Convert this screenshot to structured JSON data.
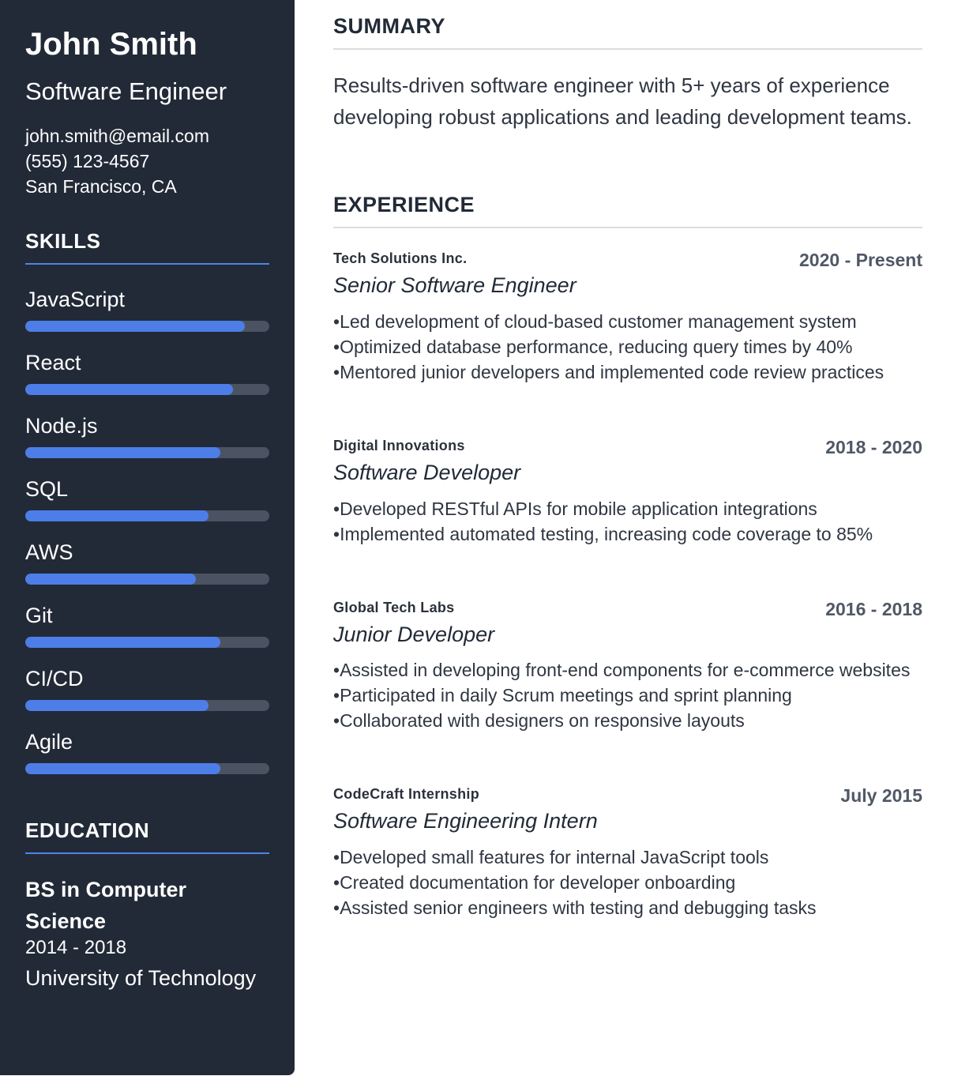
{
  "profile": {
    "name": "John Smith",
    "title": "Software Engineer",
    "email": "john.smith@email.com",
    "phone": "(555) 123-4567",
    "location": "San Francisco, CA"
  },
  "skills": {
    "heading": "SKILLS",
    "items": [
      {
        "label": "JavaScript",
        "level": 0.9
      },
      {
        "label": "React",
        "level": 0.85
      },
      {
        "label": "Node.js",
        "level": 0.8
      },
      {
        "label": "SQL",
        "level": 0.75
      },
      {
        "label": "AWS",
        "level": 0.7
      },
      {
        "label": "Git",
        "level": 0.8
      },
      {
        "label": "CI/CD",
        "level": 0.75
      },
      {
        "label": "Agile",
        "level": 0.8
      }
    ]
  },
  "education": {
    "heading": "EDUCATION",
    "degree": "BS in Computer Science",
    "years": "2014 - 2018",
    "school": "University of Technology"
  },
  "summary": {
    "heading": "SUMMARY",
    "text": "Results-driven software engineer with 5+ years of experience developing robust applications and leading development teams."
  },
  "experience": {
    "heading": "EXPERIENCE",
    "jobs": [
      {
        "company": "Tech Solutions Inc.",
        "dates": "2020 - Present",
        "role": "Senior Software Engineer",
        "bullets": [
          "Led development of cloud-based customer management system",
          "Optimized database performance, reducing query times by 40%",
          "Mentored junior developers and implemented code review practices"
        ]
      },
      {
        "company": "Digital Innovations",
        "dates": "2018 - 2020",
        "role": "Software Developer",
        "bullets": [
          "Developed RESTful APIs for mobile application integrations",
          "Implemented automated testing, increasing code coverage to 85%"
        ]
      },
      {
        "company": "Global Tech Labs",
        "dates": "2016 - 2018",
        "role": "Junior Developer",
        "bullets": [
          "Assisted in developing front-end components for e-commerce websites",
          "Participated in daily Scrum meetings and sprint planning",
          "Collaborated with designers on responsive layouts"
        ]
      },
      {
        "company": "CodeCraft Internship",
        "dates": "July 2015",
        "role": "Software Engineering Intern",
        "bullets": [
          "Developed small features for internal JavaScript tools",
          "Created documentation for developer onboarding",
          "Assisted senior engineers with testing and debugging tasks"
        ]
      }
    ]
  },
  "colors": {
    "sidebar": "#222a37",
    "accent": "#4d7ee8",
    "skill_track": "#4b5363"
  }
}
